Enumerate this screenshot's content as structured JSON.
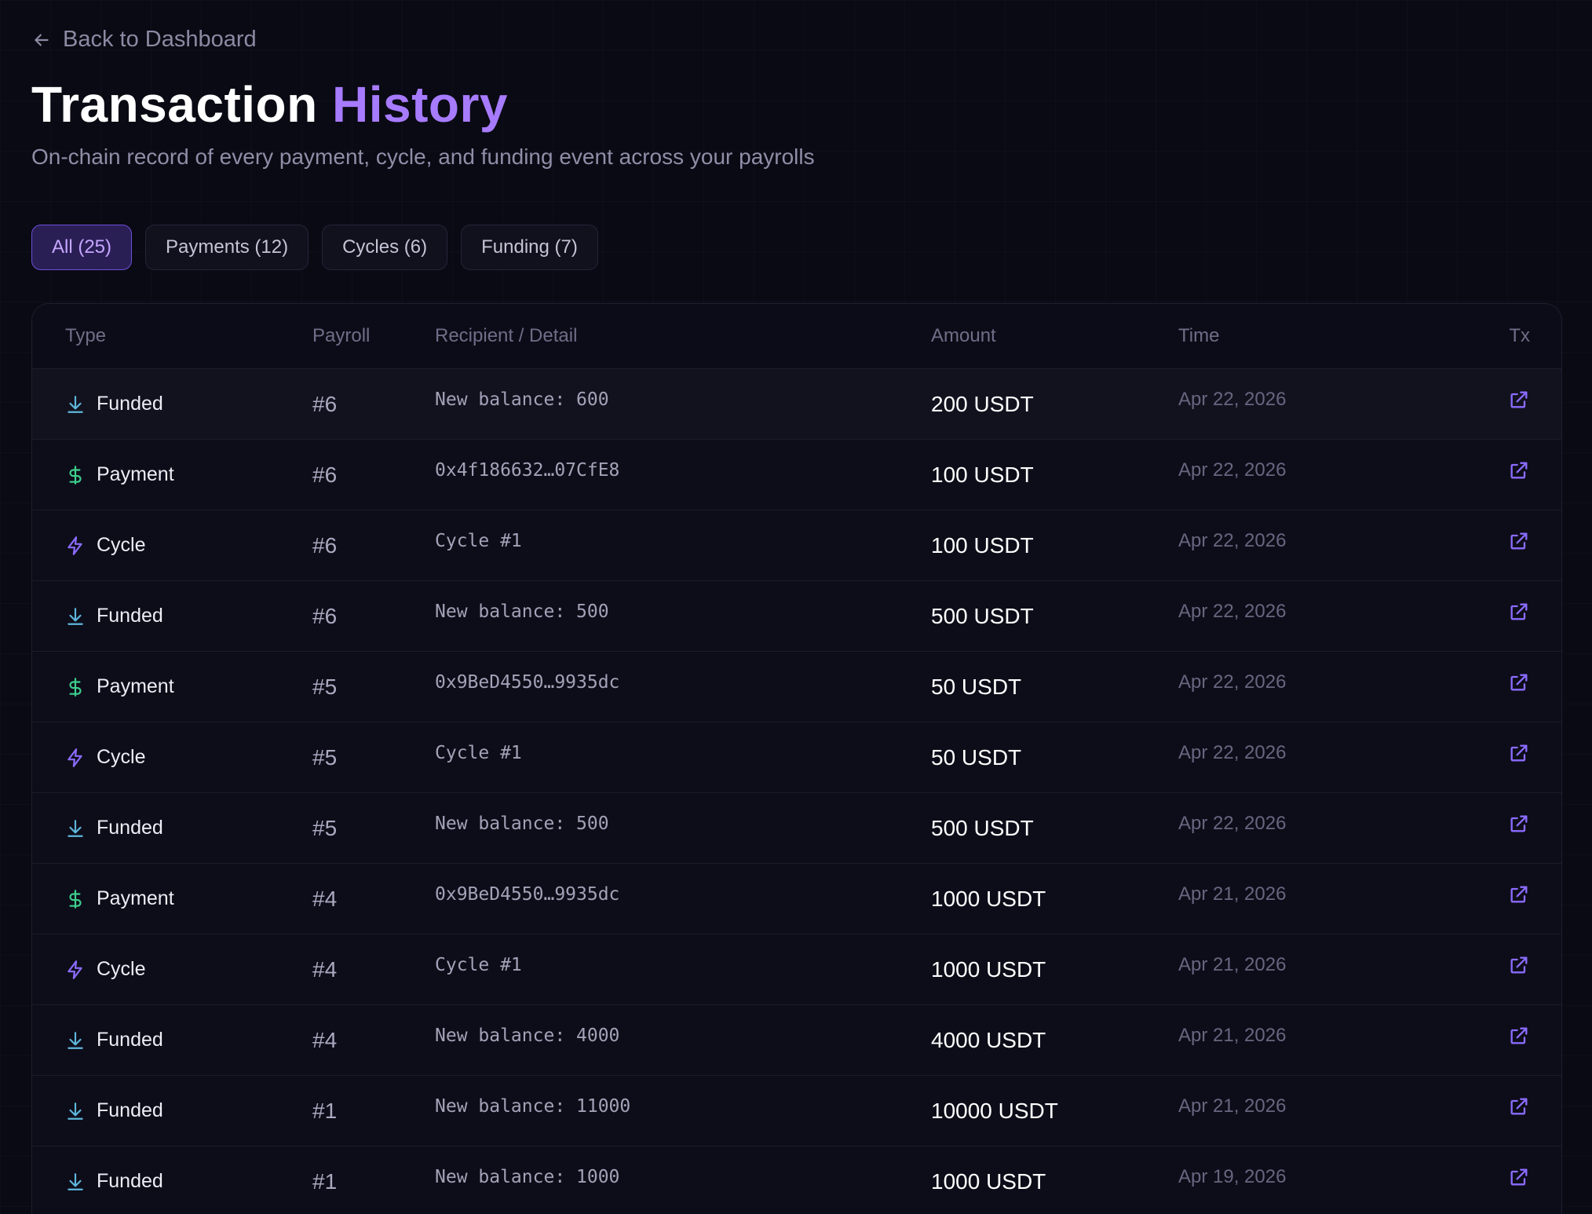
{
  "nav": {
    "back_label": "Back to Dashboard"
  },
  "header": {
    "title_main": "Transaction",
    "title_accent": "History",
    "subtitle": "On-chain record of every payment, cycle, and funding event across your payrolls"
  },
  "tabs": [
    {
      "label": "All (25)",
      "active": true
    },
    {
      "label": "Payments (12)",
      "active": false
    },
    {
      "label": "Cycles (6)",
      "active": false
    },
    {
      "label": "Funding (7)",
      "active": false
    }
  ],
  "table": {
    "columns": {
      "type": "Type",
      "payroll": "Payroll",
      "detail": "Recipient / Detail",
      "amount": "Amount",
      "time": "Time",
      "tx": "Tx"
    },
    "rows": [
      {
        "type": "Funded",
        "icon": "download-icon",
        "payroll": "#6",
        "detail": "New balance: 600",
        "amount": "200 USDT",
        "time": "Apr 22, 2026"
      },
      {
        "type": "Payment",
        "icon": "dollar-icon",
        "payroll": "#6",
        "detail": "0x4f186632…07CfE8",
        "amount": "100 USDT",
        "time": "Apr 22, 2026"
      },
      {
        "type": "Cycle",
        "icon": "lightning-icon",
        "payroll": "#6",
        "detail": "Cycle #1",
        "amount": "100 USDT",
        "time": "Apr 22, 2026"
      },
      {
        "type": "Funded",
        "icon": "download-icon",
        "payroll": "#6",
        "detail": "New balance: 500",
        "amount": "500 USDT",
        "time": "Apr 22, 2026"
      },
      {
        "type": "Payment",
        "icon": "dollar-icon",
        "payroll": "#5",
        "detail": "0x9BeD4550…9935dc",
        "amount": "50 USDT",
        "time": "Apr 22, 2026"
      },
      {
        "type": "Cycle",
        "icon": "lightning-icon",
        "payroll": "#5",
        "detail": "Cycle #1",
        "amount": "50 USDT",
        "time": "Apr 22, 2026"
      },
      {
        "type": "Funded",
        "icon": "download-icon",
        "payroll": "#5",
        "detail": "New balance: 500",
        "amount": "500 USDT",
        "time": "Apr 22, 2026"
      },
      {
        "type": "Payment",
        "icon": "dollar-icon",
        "payroll": "#4",
        "detail": "0x9BeD4550…9935dc",
        "amount": "1000 USDT",
        "time": "Apr 21, 2026"
      },
      {
        "type": "Cycle",
        "icon": "lightning-icon",
        "payroll": "#4",
        "detail": "Cycle #1",
        "amount": "1000 USDT",
        "time": "Apr 21, 2026"
      },
      {
        "type": "Funded",
        "icon": "download-icon",
        "payroll": "#4",
        "detail": "New balance: 4000",
        "amount": "4000 USDT",
        "time": "Apr 21, 2026"
      },
      {
        "type": "Funded",
        "icon": "download-icon",
        "payroll": "#1",
        "detail": "New balance: 11000",
        "amount": "10000 USDT",
        "time": "Apr 21, 2026"
      },
      {
        "type": "Funded",
        "icon": "download-icon",
        "payroll": "#1",
        "detail": "New balance: 1000",
        "amount": "1000 USDT",
        "time": "Apr 19, 2026"
      }
    ]
  },
  "colors": {
    "accent": "#a77bff",
    "funded_icon": "#5fb7dd",
    "payment_icon": "#3ecf8e",
    "cycle_icon": "#8b6cff",
    "tx_link": "#8b6cff"
  }
}
